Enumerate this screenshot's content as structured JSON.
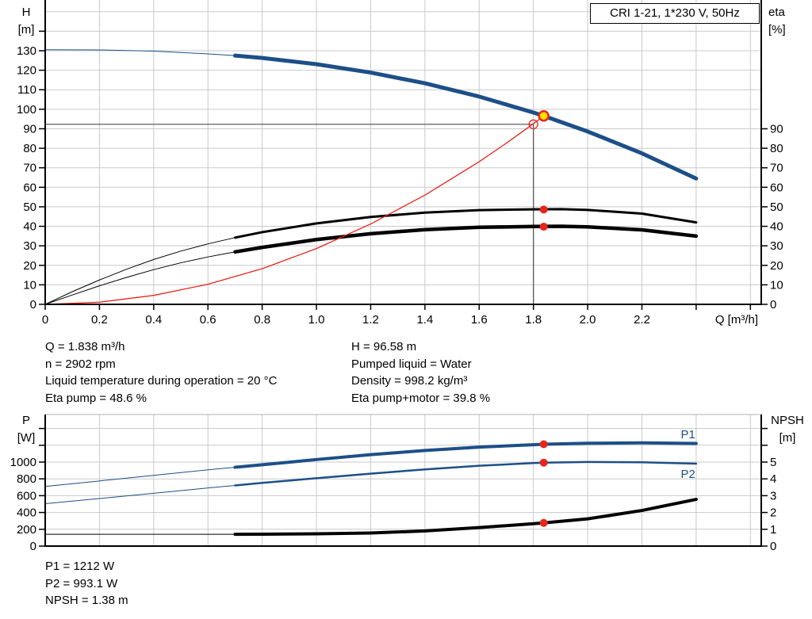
{
  "info_top_left": [
    "Q = 1.838 m³/h",
    "n = 2902 rpm",
    "Liquid temperature during operation = 20 °C",
    "Eta pump = 48.6 %"
  ],
  "info_top_right": [
    "H = 96.58 m",
    "Pumped liquid = Water",
    "Density = 998.2 kg/m³",
    "Eta pump+motor = 39.8 %"
  ],
  "info_bottom": [
    "P1 = 1212 W",
    "P2 = 993.1 W",
    "NPSH = 1.38 m"
  ],
  "colors": {
    "curve_blue": "#1d4f87",
    "red": "#e8251b",
    "yellow_fill": "#ffe000",
    "grid": "#c9c9c9",
    "crosshair": "#4d4d4d",
    "axis": "#000000",
    "text": "#000000"
  },
  "chart_data": [
    {
      "type": "line",
      "title": "CRI 1-21, 1*230 V, 50Hz",
      "x_axis": {
        "label": "Q [m³/h]",
        "min": 0,
        "max": 2.64,
        "tick_step": 0.2,
        "ticks_to": 2.6,
        "tick_labels": [
          "0",
          "0.2",
          "0.4",
          "0.6",
          "0.8",
          "1.0",
          "1.2",
          "1.4",
          "1.6",
          "1.8",
          "2.0",
          "2.2"
        ]
      },
      "y_left": {
        "label_lines": [
          "H",
          "[m]"
        ],
        "min": 0,
        "max": 156,
        "tick_step": 10,
        "ticks_to": 140,
        "tick_labels": [
          "0",
          "10",
          "20",
          "30",
          "40",
          "50",
          "60",
          "70",
          "80",
          "90",
          "100",
          "110",
          "120",
          "130"
        ]
      },
      "y_right": {
        "label_lines": [
          "eta",
          "[%]"
        ],
        "min": 0,
        "max": 156,
        "tick_step": 10,
        "ticks_to": 90,
        "tick_labels": [
          "0",
          "10",
          "20",
          "30",
          "40",
          "50",
          "60",
          "70",
          "80",
          "90"
        ]
      },
      "series": [
        {
          "name": "eta-pump",
          "axis": "right",
          "color": "#000000",
          "w_thin": 1,
          "w_thick": 3,
          "split_q": 0.7,
          "points": [
            [
              0,
              0
            ],
            [
              0.1,
              6.5
            ],
            [
              0.2,
              12.5
            ],
            [
              0.3,
              18
            ],
            [
              0.4,
              23
            ],
            [
              0.5,
              27.3
            ],
            [
              0.6,
              31
            ],
            [
              0.7,
              34.2
            ],
            [
              0.8,
              37
            ],
            [
              1.0,
              41.5
            ],
            [
              1.2,
              44.8
            ],
            [
              1.4,
              47
            ],
            [
              1.6,
              48.3
            ],
            [
              1.8,
              48.7
            ],
            [
              1.9,
              48.8
            ],
            [
              2.0,
              48.4
            ],
            [
              2.2,
              46.5
            ],
            [
              2.4,
              42
            ]
          ]
        },
        {
          "name": "eta-pump-motor",
          "axis": "right",
          "color": "#000000",
          "w_thin": 1,
          "w_thick": 4.5,
          "split_q": 0.7,
          "points": [
            [
              0,
              0
            ],
            [
              0.1,
              4.8
            ],
            [
              0.2,
              9.5
            ],
            [
              0.3,
              13.8
            ],
            [
              0.4,
              17.8
            ],
            [
              0.5,
              21.3
            ],
            [
              0.6,
              24.3
            ],
            [
              0.7,
              26.9
            ],
            [
              0.8,
              29.2
            ],
            [
              1.0,
              33.2
            ],
            [
              1.2,
              36.2
            ],
            [
              1.4,
              38.3
            ],
            [
              1.6,
              39.5
            ],
            [
              1.8,
              39.9
            ],
            [
              1.9,
              40.0
            ],
            [
              2.0,
              39.7
            ],
            [
              2.2,
              38.2
            ],
            [
              2.4,
              35
            ]
          ]
        },
        {
          "name": "system-curve",
          "axis": "left",
          "color": "#e8251b",
          "w_thin": 1.3,
          "w_thick": 1.3,
          "split_q": 9,
          "points": [
            [
              0,
              0
            ],
            [
              0.2,
              1.1
            ],
            [
              0.4,
              4.6
            ],
            [
              0.6,
              10.3
            ],
            [
              0.8,
              18.3
            ],
            [
              1.0,
              28.6
            ],
            [
              1.2,
              41.2
            ],
            [
              1.4,
              56.0
            ],
            [
              1.6,
              73.1
            ],
            [
              1.7,
              82.6
            ],
            [
              1.8,
              92.6
            ],
            [
              1.838,
              96.58
            ]
          ]
        },
        {
          "name": "h-q-curve",
          "axis": "left",
          "color": "#1d4f87",
          "w_thin": 1,
          "w_thick": 5,
          "split_q": 0.7,
          "points": [
            [
              0,
              130.5
            ],
            [
              0.2,
              130.4
            ],
            [
              0.4,
              129.8
            ],
            [
              0.6,
              128.4
            ],
            [
              0.7,
              127.5
            ],
            [
              0.8,
              126.3
            ],
            [
              1.0,
              123.1
            ],
            [
              1.2,
              118.8
            ],
            [
              1.4,
              113.3
            ],
            [
              1.6,
              106.5
            ],
            [
              1.8,
              98.3
            ],
            [
              1.838,
              96.58
            ],
            [
              2.0,
              88.6
            ],
            [
              2.2,
              77.4
            ],
            [
              2.4,
              64.5
            ]
          ]
        }
      ],
      "duty_point": {
        "q": 1.838,
        "h": 96.58
      },
      "requested_point": {
        "q": 1.8,
        "h": 92.3
      },
      "marked_values": [
        {
          "series": "eta-pump",
          "axis": "right",
          "q": 1.838,
          "value": 48.6
        },
        {
          "series": "eta-pump-motor",
          "axis": "right",
          "q": 1.838,
          "value": 39.8
        }
      ]
    },
    {
      "type": "line",
      "title": "",
      "x_axis": {
        "label": "",
        "min": 0,
        "max": 2.64,
        "tick_step": 0.2,
        "ticks_to": 2.6,
        "tick_labels": []
      },
      "y_left": {
        "label_lines": [
          "P",
          "[W]"
        ],
        "min": 0,
        "max": 1566,
        "tick_step": 200,
        "ticks_to": 1400,
        "tick_labels": [
          "0",
          "200",
          "400",
          "600",
          "800",
          "1000"
        ]
      },
      "y_right": {
        "label_lines": [
          "NPSH",
          "[m]"
        ],
        "min": 0,
        "max": 7.83,
        "tick_step": 1,
        "ticks_to": 7,
        "tick_labels": [
          "0",
          "1",
          "2",
          "3",
          "4",
          "5"
        ]
      },
      "series": [
        {
          "name": "p1-curve",
          "axis": "left",
          "color": "#1d4f87",
          "w_thin": 1,
          "w_thick": 4,
          "split_q": 0.7,
          "label": {
            "text": "P1",
            "q": 2.37,
            "value": 1330
          },
          "points": [
            [
              0,
              710
            ],
            [
              0.2,
              775
            ],
            [
              0.4,
              842
            ],
            [
              0.6,
              908
            ],
            [
              0.7,
              938
            ],
            [
              0.8,
              968
            ],
            [
              1.0,
              1030
            ],
            [
              1.2,
              1088
            ],
            [
              1.4,
              1138
            ],
            [
              1.6,
              1178
            ],
            [
              1.8,
              1206
            ],
            [
              1.838,
              1212
            ],
            [
              2.0,
              1224
            ],
            [
              2.2,
              1229
            ],
            [
              2.4,
              1222
            ]
          ]
        },
        {
          "name": "p2-curve",
          "axis": "left",
          "color": "#1d4f87",
          "w_thin": 1,
          "w_thick": 2.5,
          "split_q": 0.7,
          "label": {
            "text": "P2",
            "q": 2.37,
            "value": 860
          },
          "points": [
            [
              0,
              505
            ],
            [
              0.2,
              566
            ],
            [
              0.4,
              628
            ],
            [
              0.6,
              692
            ],
            [
              0.7,
              722
            ],
            [
              0.8,
              752
            ],
            [
              1.0,
              808
            ],
            [
              1.2,
              862
            ],
            [
              1.4,
              913
            ],
            [
              1.6,
              956
            ],
            [
              1.8,
              988
            ],
            [
              1.838,
              993.1
            ],
            [
              2.0,
              1001
            ],
            [
              2.2,
              998
            ],
            [
              2.4,
              981
            ]
          ]
        },
        {
          "name": "npsh-curve",
          "axis": "right",
          "color": "#000000",
          "w_thin": 1,
          "w_thick": 4,
          "split_q": 0.7,
          "points": [
            [
              0,
              0.7
            ],
            [
              0.2,
              0.7
            ],
            [
              0.4,
              0.7
            ],
            [
              0.6,
              0.7
            ],
            [
              0.7,
              0.7
            ],
            [
              0.8,
              0.71
            ],
            [
              1.0,
              0.73
            ],
            [
              1.2,
              0.78
            ],
            [
              1.4,
              0.9
            ],
            [
              1.6,
              1.1
            ],
            [
              1.8,
              1.33
            ],
            [
              1.838,
              1.38
            ],
            [
              2.0,
              1.62
            ],
            [
              2.2,
              2.12
            ],
            [
              2.4,
              2.78
            ]
          ]
        }
      ],
      "marked_values": [
        {
          "series": "p1-curve",
          "axis": "left",
          "q": 1.838,
          "value": 1212
        },
        {
          "series": "p2-curve",
          "axis": "left",
          "q": 1.838,
          "value": 993.1
        },
        {
          "series": "npsh-curve",
          "axis": "right",
          "q": 1.838,
          "value": 1.38
        }
      ]
    }
  ]
}
